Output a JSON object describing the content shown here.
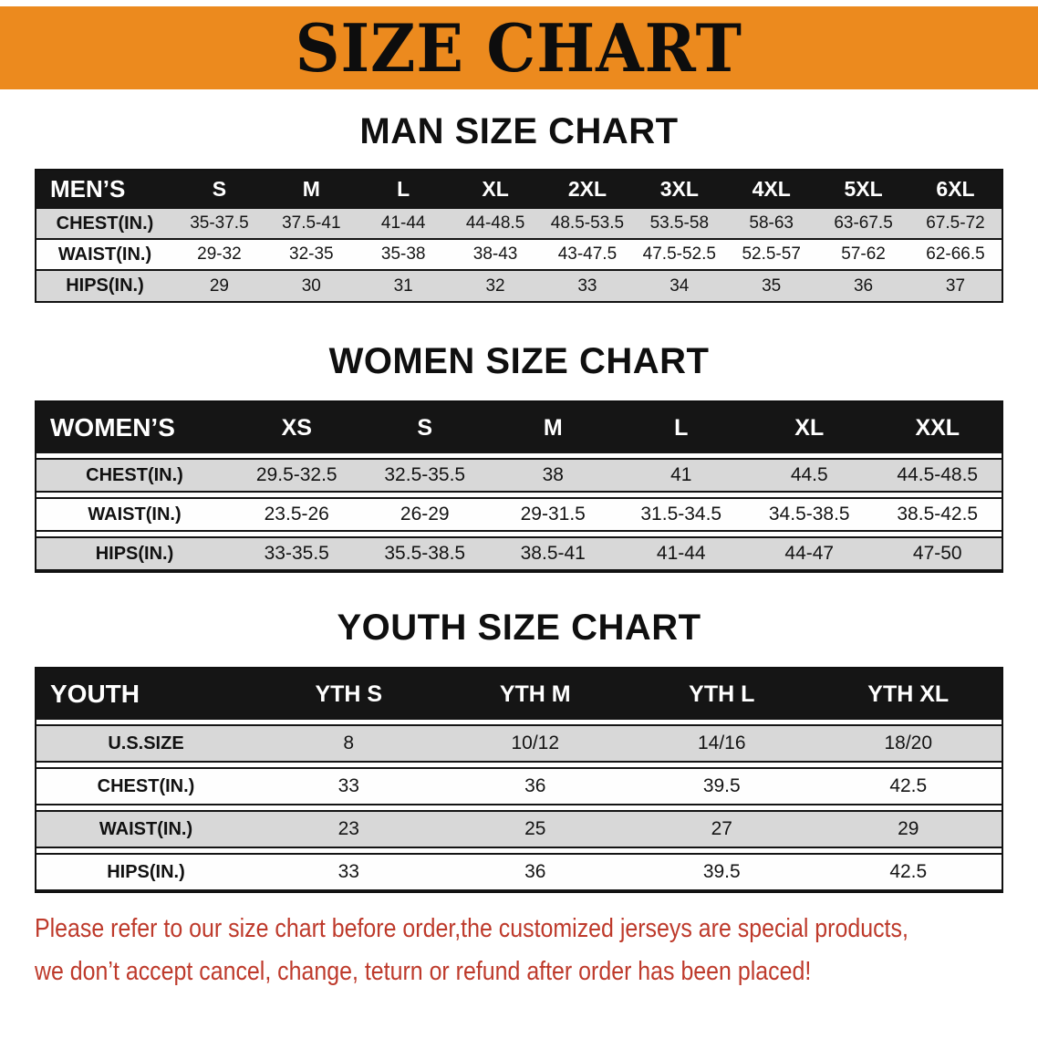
{
  "banner": {
    "title": "SIZE CHART",
    "bg_color": "#EC8A1E"
  },
  "sections": [
    {
      "heading": "MAN SIZE CHART",
      "table": {
        "header": [
          "MEN’S",
          "S",
          "M",
          "L",
          "XL",
          "2XL",
          "3XL",
          "4XL",
          "5XL",
          "6XL"
        ],
        "rows": [
          {
            "label": "CHEST(IN.)",
            "values": [
              "35-37.5",
              "37.5-41",
              "41-44",
              "44-48.5",
              "48.5-53.5",
              "53.5-58",
              "58-63",
              "63-67.5",
              "67.5-72"
            ]
          },
          {
            "label": "WAIST(IN.)",
            "values": [
              "29-32",
              "32-35",
              "35-38",
              "38-43",
              "43-47.5",
              "47.5-52.5",
              "52.5-57",
              "57-62",
              "62-66.5"
            ]
          },
          {
            "label": "HIPS(IN.)",
            "values": [
              "29",
              "30",
              "31",
              "32",
              "33",
              "34",
              "35",
              "36",
              "37"
            ]
          }
        ]
      }
    },
    {
      "heading": "WOMEN SIZE CHART",
      "table": {
        "header": [
          "WOMEN’S",
          "XS",
          "S",
          "M",
          "L",
          "XL",
          "XXL"
        ],
        "rows": [
          {
            "label": "CHEST(IN.)",
            "values": [
              "29.5-32.5",
              "32.5-35.5",
              "38",
              "41",
              "44.5",
              "44.5-48.5"
            ]
          },
          {
            "label": "WAIST(IN.)",
            "values": [
              "23.5-26",
              "26-29",
              "29-31.5",
              "31.5-34.5",
              "34.5-38.5",
              "38.5-42.5"
            ]
          },
          {
            "label": "HIPS(IN.)",
            "values": [
              "33-35.5",
              "35.5-38.5",
              "38.5-41",
              "41-44",
              "44-47",
              "47-50"
            ]
          }
        ]
      }
    },
    {
      "heading": "YOUTH SIZE CHART",
      "table": {
        "header": [
          "YOUTH",
          "YTH S",
          "YTH M",
          "YTH L",
          "YTH XL"
        ],
        "rows": [
          {
            "label": "U.S.SIZE",
            "values": [
              "8",
              "10/12",
              "14/16",
              "18/20"
            ]
          },
          {
            "label": "CHEST(IN.)",
            "values": [
              "33",
              "36",
              "39.5",
              "42.5"
            ]
          },
          {
            "label": "WAIST(IN.)",
            "values": [
              "23",
              "25",
              "27",
              "29"
            ]
          },
          {
            "label": "HIPS(IN.)",
            "values": [
              "33",
              "36",
              "39.5",
              "42.5"
            ]
          }
        ]
      }
    }
  ],
  "footer": {
    "color": "#BE3A2B",
    "lines": [
      "Please refer to our size chart before order,the customized jerseys are special products,",
      "we don’t accept cancel, change, teturn or refund after order has been placed!"
    ]
  },
  "colors": {
    "header_bg": "#151515",
    "row_shaded": "#D8D8D8",
    "row_plain": "#FEFEFE"
  }
}
